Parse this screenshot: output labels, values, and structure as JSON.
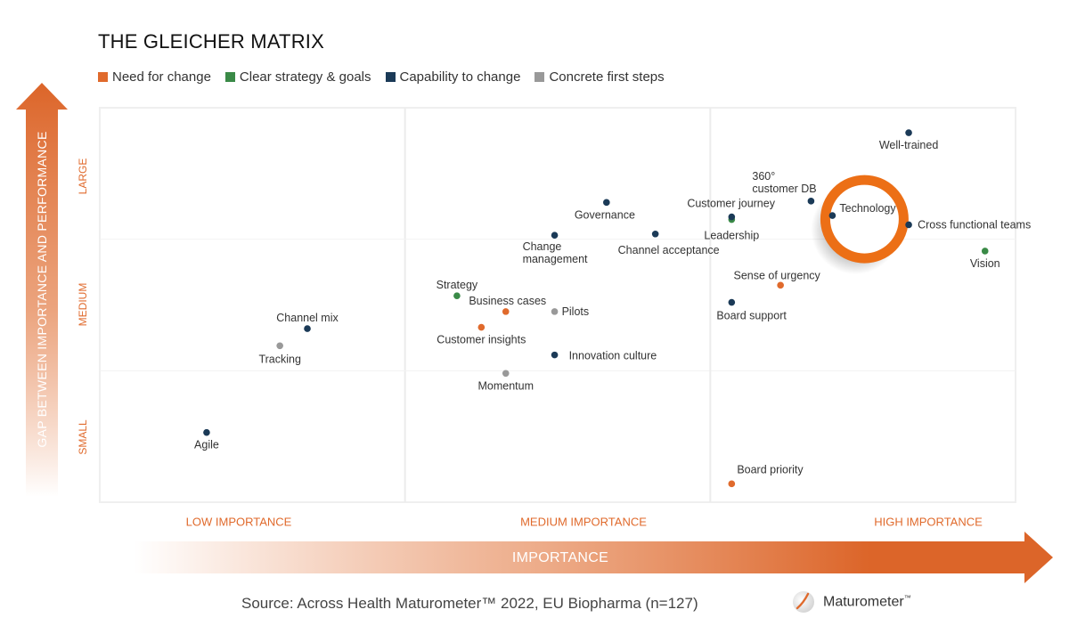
{
  "chart_data": {
    "type": "scatter",
    "title": "THE GLEICHER MATRIX",
    "xlabel": "IMPORTANCE",
    "ylabel": "GAP BETWEEN IMPORTANCE AND PERFORMANCE",
    "x_levels": [
      "LOW IMPORTANCE",
      "MEDIUM IMPORTANCE",
      "HIGH IMPORTANCE"
    ],
    "y_levels": [
      "SMALL",
      "MEDIUM",
      "LARGE"
    ],
    "xlim": [
      0,
      3
    ],
    "ylim": [
      0,
      3
    ],
    "grid": true,
    "legend_position": "top-left",
    "series": [
      {
        "name": "Need for change",
        "color": "#e06a2c",
        "points": [
          {
            "label": "Business cases",
            "x": 1.33,
            "y": 1.45
          },
          {
            "label": "Customer insights",
            "x": 1.25,
            "y": 1.33
          },
          {
            "label": "Sense of urgency",
            "x": 2.23,
            "y": 1.65
          },
          {
            "label": "Board priority",
            "x": 2.07,
            "y": 0.14
          }
        ]
      },
      {
        "name": "Clear strategy & goals",
        "color": "#3a8a47",
        "points": [
          {
            "label": "Strategy",
            "x": 1.17,
            "y": 1.57
          },
          {
            "label": "Leadership",
            "x": 2.07,
            "y": 2.15
          },
          {
            "label": "Vision",
            "x": 2.9,
            "y": 1.91
          }
        ]
      },
      {
        "name": "Capability to change",
        "color": "#1b3a57",
        "points": [
          {
            "label": "Well-trained",
            "x": 2.65,
            "y": 2.81
          },
          {
            "label": "360° customer DB",
            "x": 2.33,
            "y": 2.29
          },
          {
            "label": "Technology",
            "x": 2.4,
            "y": 2.18,
            "highlighted": true
          },
          {
            "label": "Cross functional teams",
            "x": 2.65,
            "y": 2.11
          },
          {
            "label": "Customer journey",
            "x": 2.07,
            "y": 2.17
          },
          {
            "label": "Governance",
            "x": 1.66,
            "y": 2.28
          },
          {
            "label": "Change management",
            "x": 1.49,
            "y": 2.03
          },
          {
            "label": "Channel acceptance",
            "x": 1.82,
            "y": 2.04
          },
          {
            "label": "Board support",
            "x": 2.07,
            "y": 1.52
          },
          {
            "label": "Innovation culture",
            "x": 1.49,
            "y": 1.12
          },
          {
            "label": "Channel mix",
            "x": 0.68,
            "y": 1.32
          },
          {
            "label": "Agile",
            "x": 0.35,
            "y": 0.53
          }
        ]
      },
      {
        "name": "Concrete first steps",
        "color": "#999999",
        "points": [
          {
            "label": "Pilots",
            "x": 1.49,
            "y": 1.45
          },
          {
            "label": "Momentum",
            "x": 1.33,
            "y": 0.98
          },
          {
            "label": "Tracking",
            "x": 0.59,
            "y": 1.19
          }
        ]
      }
    ],
    "annotation": "Technology highlighted with orange ring"
  },
  "footer": {
    "source": "Source: Across Health Maturometer™ 2022, EU Biopharma (n=127)",
    "brand": "Maturometer",
    "brand_tm": "™"
  }
}
